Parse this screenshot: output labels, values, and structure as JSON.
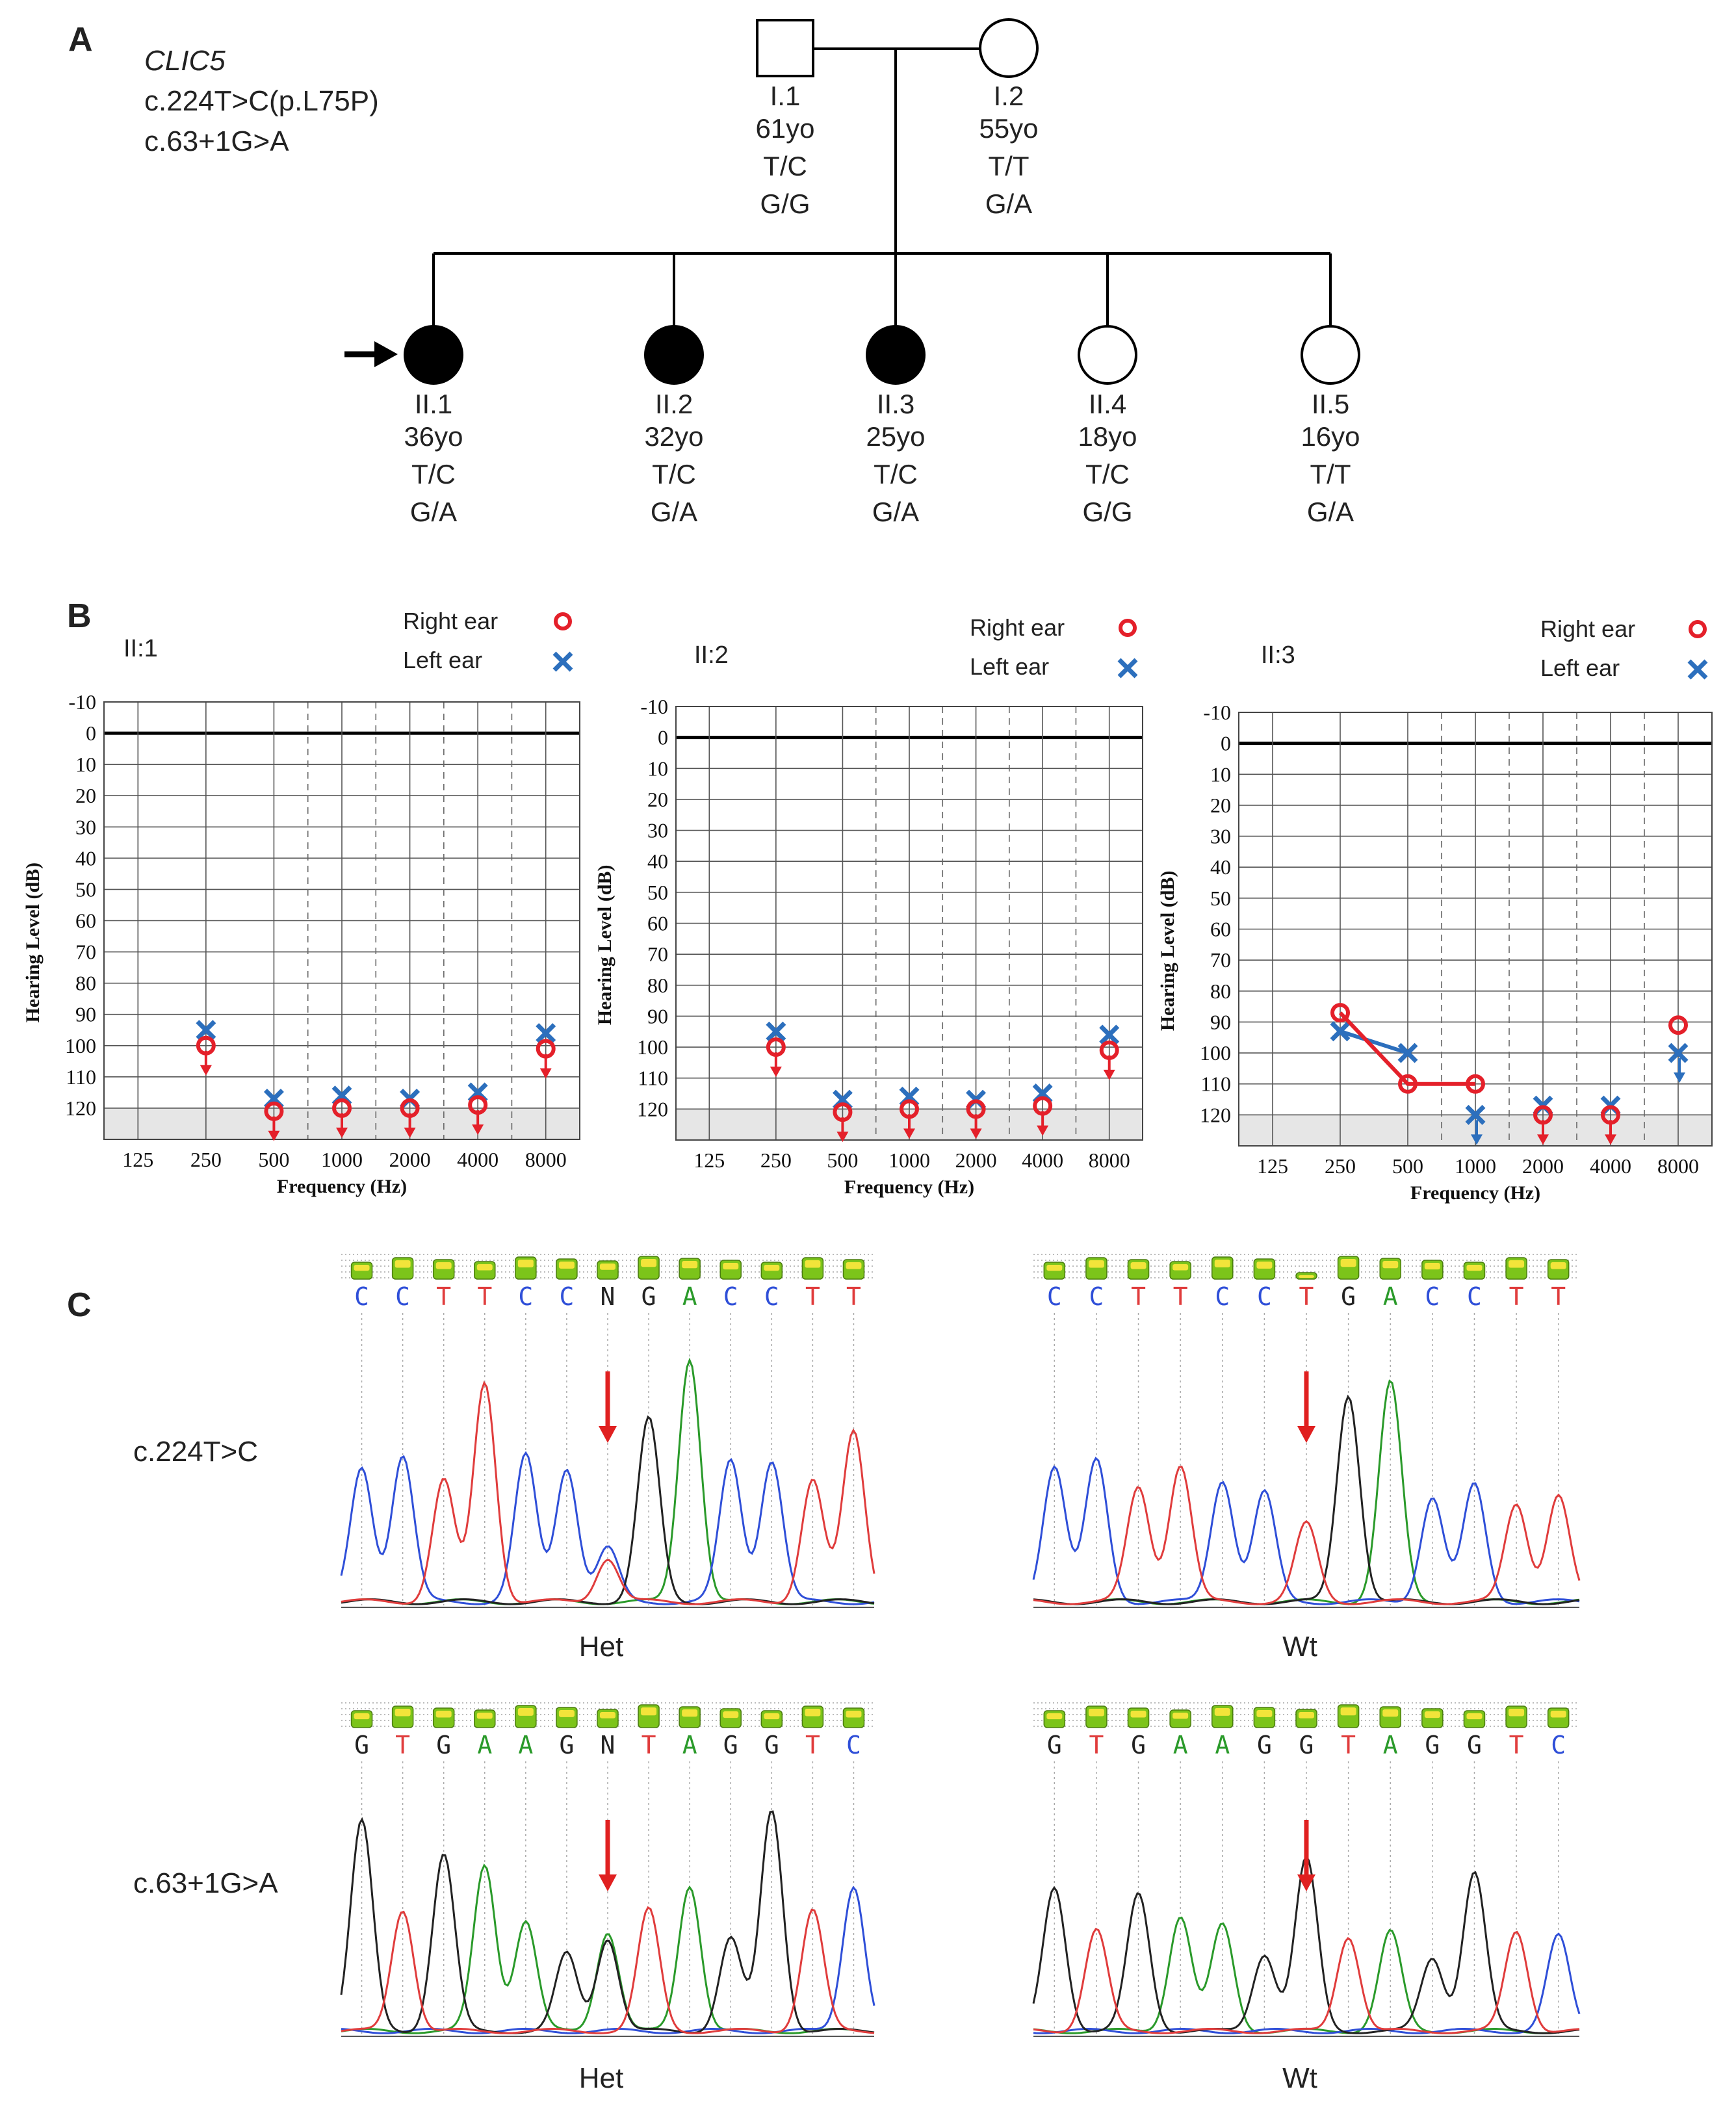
{
  "colors": {
    "right_ear": "#e4202a",
    "left_ear": "#2c6fbd",
    "affected": "#000000",
    "base_A": "#2a9a2a",
    "base_C": "#2f4fd8",
    "base_G": "#222222",
    "base_T": "#e03c3c",
    "arrow": "#e02020"
  },
  "panelA": {
    "letter": "A",
    "gene": "CLIC5",
    "variant1": "c.224T>C(p.L75P)",
    "variant2": "c.63+1G>A",
    "members": [
      {
        "id": "I.1",
        "sex": "male",
        "affected": false,
        "age": "61yo",
        "g1": "T/C",
        "g2": "G/G"
      },
      {
        "id": "I.2",
        "sex": "female",
        "affected": false,
        "age": "55yo",
        "g1": "T/T",
        "g2": "G/A"
      },
      {
        "id": "II.1",
        "sex": "female",
        "affected": true,
        "proband": true,
        "age": "36yo",
        "g1": "T/C",
        "g2": "G/A"
      },
      {
        "id": "II.2",
        "sex": "female",
        "affected": true,
        "age": "32yo",
        "g1": "T/C",
        "g2": "G/A"
      },
      {
        "id": "II.3",
        "sex": "female",
        "affected": true,
        "age": "25yo",
        "g1": "T/C",
        "g2": "G/A"
      },
      {
        "id": "II.4",
        "sex": "female",
        "affected": false,
        "age": "18yo",
        "g1": "T/C",
        "g2": "G/G"
      },
      {
        "id": "II.5",
        "sex": "female",
        "affected": false,
        "age": "16yo",
        "g1": "T/T",
        "g2": "G/A"
      }
    ]
  },
  "panelB": {
    "letter": "B",
    "legend_right": "Right ear",
    "legend_left": "Left ear"
  },
  "chart_data": [
    {
      "type": "line",
      "title": "II:1",
      "xlabel": "Frequency (Hz)",
      "ylabel": "Hearing Level (dB)",
      "categories": [
        "125",
        "250",
        "500",
        "1000",
        "2000",
        "4000",
        "8000"
      ],
      "yticks": [
        "-10",
        "0",
        "10",
        "20",
        "30",
        "40",
        "50",
        "60",
        "70",
        "80",
        "90",
        "100",
        "110",
        "120"
      ],
      "ylim": [
        -10,
        130
      ],
      "series": [
        {
          "name": "Right ear",
          "values": [
            null,
            100,
            121,
            120,
            120,
            119,
            101
          ],
          "no_response": [
            false,
            true,
            true,
            true,
            true,
            true,
            true
          ],
          "connected": [
            false,
            false,
            false,
            false,
            false,
            false,
            false
          ]
        },
        {
          "name": "Left ear",
          "values": [
            null,
            95,
            117,
            116,
            117,
            115,
            96
          ],
          "no_response": [
            false,
            false,
            false,
            false,
            false,
            false,
            false
          ],
          "connected": [
            false,
            false,
            false,
            false,
            false,
            false,
            false
          ]
        }
      ]
    },
    {
      "type": "line",
      "title": "II:2",
      "xlabel": "Frequency (Hz)",
      "ylabel": "Hearing Level (dB)",
      "categories": [
        "125",
        "250",
        "500",
        "1000",
        "2000",
        "4000",
        "8000"
      ],
      "yticks": [
        "-10",
        "0",
        "10",
        "20",
        "30",
        "40",
        "50",
        "60",
        "70",
        "80",
        "90",
        "100",
        "110",
        "120"
      ],
      "ylim": [
        -10,
        130
      ],
      "series": [
        {
          "name": "Right ear",
          "values": [
            null,
            100,
            121,
            120,
            120,
            119,
            101
          ],
          "no_response": [
            false,
            true,
            true,
            true,
            true,
            true,
            true
          ],
          "connected": [
            false,
            false,
            false,
            false,
            false,
            false,
            false
          ]
        },
        {
          "name": "Left ear",
          "values": [
            null,
            95,
            117,
            116,
            117,
            115,
            96
          ],
          "no_response": [
            false,
            false,
            false,
            false,
            false,
            false,
            false
          ],
          "connected": [
            false,
            false,
            false,
            false,
            false,
            false,
            false
          ]
        }
      ]
    },
    {
      "type": "line",
      "title": "II:3",
      "xlabel": "Frequency (Hz)",
      "ylabel": "Hearing Level (dB)",
      "categories": [
        "125",
        "250",
        "500",
        "1000",
        "2000",
        "4000",
        "8000"
      ],
      "yticks": [
        "-10",
        "0",
        "10",
        "20",
        "30",
        "40",
        "50",
        "60",
        "70",
        "80",
        "90",
        "100",
        "110",
        "120"
      ],
      "ylim": [
        -10,
        130
      ],
      "series": [
        {
          "name": "Right ear",
          "values": [
            null,
            87,
            110,
            110,
            120,
            120,
            91
          ],
          "no_response": [
            false,
            false,
            false,
            false,
            true,
            true,
            false
          ],
          "connected": [
            false,
            true,
            true,
            true,
            false,
            false,
            false
          ]
        },
        {
          "name": "Left ear",
          "values": [
            null,
            93,
            100,
            120,
            117,
            117,
            100
          ],
          "no_response": [
            false,
            false,
            false,
            true,
            false,
            false,
            true
          ],
          "connected": [
            false,
            true,
            true,
            false,
            false,
            false,
            false
          ]
        }
      ]
    }
  ],
  "panelC": {
    "letter": "C",
    "row_labels": [
      "c.224T>C",
      "c.63+1G>A"
    ],
    "traces": [
      {
        "name": "trace-224-het",
        "label": "Het",
        "bases": [
          "C",
          "C",
          "T",
          "T",
          "C",
          "C",
          "N",
          "G",
          "A",
          "C",
          "C",
          "T",
          "T"
        ]
      },
      {
        "name": "trace-224-wt",
        "label": "Wt",
        "bases": [
          "C",
          "C",
          "T",
          "T",
          "C",
          "C",
          "T",
          "G",
          "A",
          "C",
          "C",
          "T",
          "T"
        ]
      },
      {
        "name": "trace-63-het",
        "label": "Het",
        "bases": [
          "G",
          "T",
          "G",
          "A",
          "A",
          "G",
          "N",
          "T",
          "A",
          "G",
          "G",
          "T",
          "C"
        ]
      },
      {
        "name": "trace-63-wt",
        "label": "Wt",
        "bases": [
          "G",
          "T",
          "G",
          "A",
          "A",
          "G",
          "G",
          "T",
          "A",
          "G",
          "G",
          "T",
          "C"
        ]
      }
    ]
  }
}
